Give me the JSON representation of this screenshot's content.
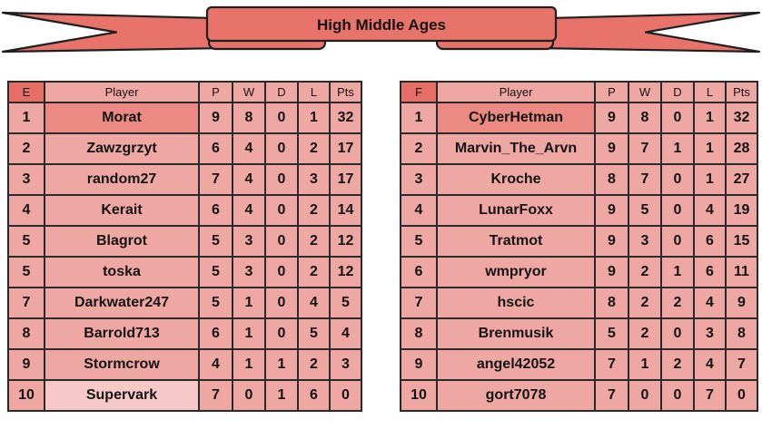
{
  "banner": {
    "title": "High Middle Ages"
  },
  "colors": {
    "banner_fill": "#e8736b",
    "outline": "#1f1f1f",
    "cell_bg": "#efa7a3",
    "group_header_bg": "#e76e66",
    "first_place_bg": "#eb8a83",
    "last_place_light_bg": "#f6c9c8",
    "border": "#2a2a2a",
    "text": "#141414"
  },
  "tables": [
    {
      "group": "E",
      "headers": [
        "Player",
        "P",
        "W",
        "D",
        "L",
        "Pts"
      ],
      "rows": [
        {
          "rank": "1",
          "player": "Morat",
          "p": "9",
          "w": "8",
          "d": "0",
          "l": "1",
          "pts": "32",
          "highlight": "first"
        },
        {
          "rank": "2",
          "player": "Zawzgrzyt",
          "p": "6",
          "w": "4",
          "d": "0",
          "l": "2",
          "pts": "17",
          "highlight": ""
        },
        {
          "rank": "3",
          "player": "random27",
          "p": "7",
          "w": "4",
          "d": "0",
          "l": "3",
          "pts": "17",
          "highlight": ""
        },
        {
          "rank": "4",
          "player": "Kerait",
          "p": "6",
          "w": "4",
          "d": "0",
          "l": "2",
          "pts": "14",
          "highlight": ""
        },
        {
          "rank": "5",
          "player": "Blagrot",
          "p": "5",
          "w": "3",
          "d": "0",
          "l": "2",
          "pts": "12",
          "highlight": ""
        },
        {
          "rank": "5",
          "player": "toska",
          "p": "5",
          "w": "3",
          "d": "0",
          "l": "2",
          "pts": "12",
          "highlight": ""
        },
        {
          "rank": "7",
          "player": "Darkwater247",
          "p": "5",
          "w": "1",
          "d": "0",
          "l": "4",
          "pts": "5",
          "highlight": ""
        },
        {
          "rank": "8",
          "player": "Barrold713",
          "p": "6",
          "w": "1",
          "d": "0",
          "l": "5",
          "pts": "4",
          "highlight": ""
        },
        {
          "rank": "9",
          "player": "Stormcrow",
          "p": "4",
          "w": "1",
          "d": "1",
          "l": "2",
          "pts": "3",
          "highlight": ""
        },
        {
          "rank": "10",
          "player": "Supervark",
          "p": "7",
          "w": "0",
          "d": "1",
          "l": "6",
          "pts": "0",
          "highlight": "light"
        }
      ]
    },
    {
      "group": "F",
      "headers": [
        "Player",
        "P",
        "W",
        "D",
        "L",
        "Pts"
      ],
      "rows": [
        {
          "rank": "1",
          "player": "CyberHetman",
          "p": "9",
          "w": "8",
          "d": "0",
          "l": "1",
          "pts": "32",
          "highlight": "first"
        },
        {
          "rank": "2",
          "player": "Marvin_The_Arvn",
          "p": "9",
          "w": "7",
          "d": "1",
          "l": "1",
          "pts": "28",
          "highlight": ""
        },
        {
          "rank": "3",
          "player": "Kroche",
          "p": "8",
          "w": "7",
          "d": "0",
          "l": "1",
          "pts": "27",
          "highlight": ""
        },
        {
          "rank": "4",
          "player": "LunarFoxx",
          "p": "9",
          "w": "5",
          "d": "0",
          "l": "4",
          "pts": "19",
          "highlight": ""
        },
        {
          "rank": "5",
          "player": "Tratmot",
          "p": "9",
          "w": "3",
          "d": "0",
          "l": "6",
          "pts": "15",
          "highlight": ""
        },
        {
          "rank": "6",
          "player": "wmpryor",
          "p": "9",
          "w": "2",
          "d": "1",
          "l": "6",
          "pts": "11",
          "highlight": ""
        },
        {
          "rank": "7",
          "player": "hscic",
          "p": "8",
          "w": "2",
          "d": "2",
          "l": "4",
          "pts": "9",
          "highlight": ""
        },
        {
          "rank": "8",
          "player": "Brenmusik",
          "p": "5",
          "w": "2",
          "d": "0",
          "l": "3",
          "pts": "8",
          "highlight": ""
        },
        {
          "rank": "9",
          "player": "angel42052",
          "p": "7",
          "w": "1",
          "d": "2",
          "l": "4",
          "pts": "7",
          "highlight": ""
        },
        {
          "rank": "10",
          "player": "gort7078",
          "p": "7",
          "w": "0",
          "d": "0",
          "l": "7",
          "pts": "0",
          "highlight": ""
        }
      ]
    }
  ]
}
